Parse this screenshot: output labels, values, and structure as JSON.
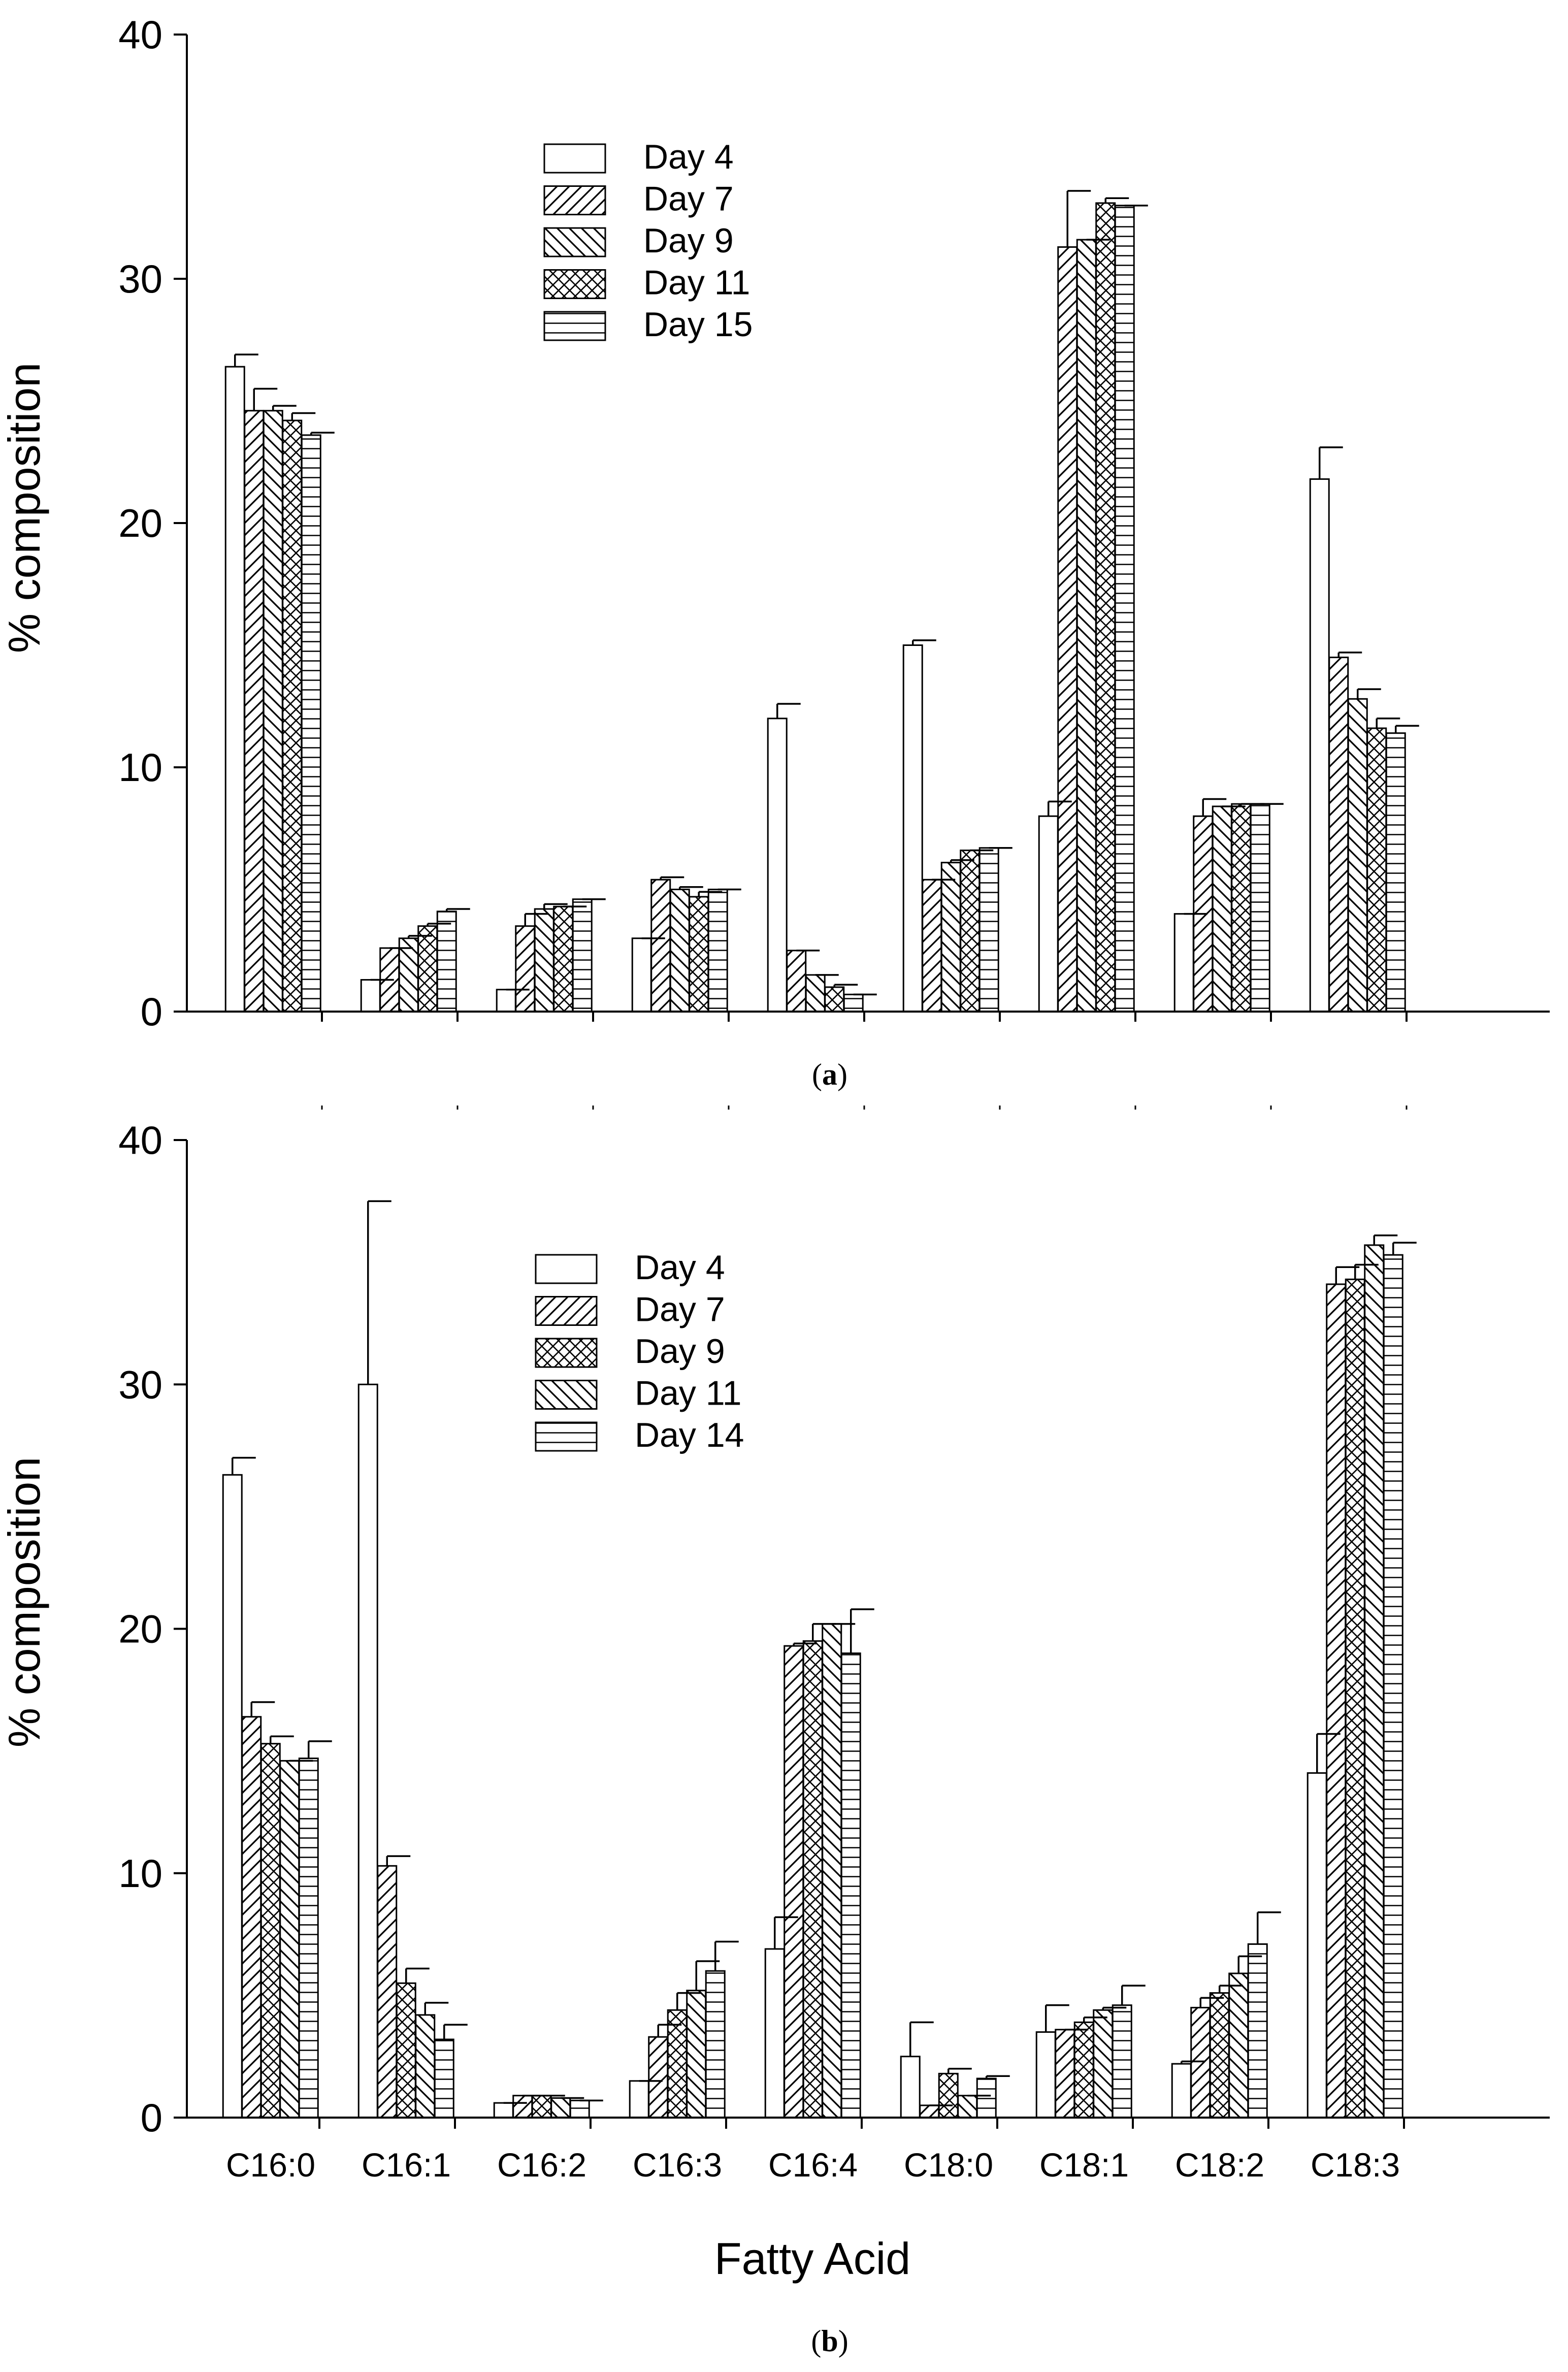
{
  "chart_data": [
    {
      "type": "bar",
      "panel_label": "a",
      "ylabel": "% composition",
      "xlabel": "",
      "ylim": [
        0,
        40
      ],
      "yticks": [
        0,
        10,
        20,
        30,
        40
      ],
      "categories": [
        "C16:0",
        "C16:1",
        "C16:2",
        "C16:3",
        "C16:4",
        "C18:0",
        "C18:1",
        "C18:2",
        "C18:3"
      ],
      "show_category_labels": false,
      "legend_position": "upper-center",
      "series": [
        {
          "name": "Day 4",
          "pattern": "none",
          "values": [
            26.4,
            1.3,
            0.9,
            3.0,
            12.0,
            15.0,
            8.0,
            4.0,
            21.8
          ],
          "errors": [
            0.5,
            0.0,
            0.0,
            0.0,
            0.6,
            0.2,
            0.6,
            0.0,
            1.3
          ]
        },
        {
          "name": "Day 7",
          "pattern": "diag-right",
          "values": [
            24.6,
            2.6,
            3.5,
            5.4,
            2.5,
            5.4,
            31.3,
            8.0,
            14.5
          ],
          "errors": [
            0.9,
            0.0,
            0.5,
            0.1,
            0.0,
            0.0,
            2.3,
            0.7,
            0.2
          ]
        },
        {
          "name": "Day 9",
          "pattern": "diag-left",
          "values": [
            24.6,
            3.0,
            4.2,
            5.0,
            1.5,
            6.1,
            31.6,
            8.4,
            12.8
          ],
          "errors": [
            0.2,
            0.1,
            0.2,
            0.1,
            0.0,
            0.1,
            0.0,
            0.0,
            0.4
          ]
        },
        {
          "name": "Day 11",
          "pattern": "crosshatch",
          "values": [
            24.2,
            3.5,
            4.3,
            4.7,
            1.0,
            6.6,
            33.1,
            8.5,
            11.6
          ],
          "errors": [
            0.3,
            0.1,
            0.0,
            0.2,
            0.1,
            0.0,
            0.2,
            0.0,
            0.4
          ]
        },
        {
          "name": "Day 15",
          "pattern": "horizontal",
          "values": [
            23.6,
            4.1,
            4.6,
            5.0,
            0.7,
            6.7,
            33.0,
            8.5,
            11.4
          ],
          "errors": [
            0.1,
            0.1,
            0.0,
            0.0,
            0.0,
            0.0,
            0.0,
            0.0,
            0.3
          ]
        }
      ]
    },
    {
      "type": "bar",
      "panel_label": "b",
      "ylabel": "% composition",
      "xlabel": "Fatty Acid",
      "ylim": [
        0,
        40
      ],
      "yticks": [
        0,
        10,
        20,
        30,
        40
      ],
      "categories": [
        "C16:0",
        "C16:1",
        "C16:2",
        "C16:3",
        "C16:4",
        "C18:0",
        "C18:1",
        "C18:2",
        "C18:3"
      ],
      "show_category_labels": true,
      "legend_position": "upper-left",
      "series": [
        {
          "name": "Day 4",
          "pattern": "none",
          "values": [
            26.3,
            30.0,
            0.6,
            1.5,
            6.9,
            2.5,
            3.5,
            2.2,
            14.1
          ],
          "errors": [
            0.7,
            7.5,
            0.0,
            0.0,
            1.3,
            1.4,
            1.1,
            0.1,
            1.6
          ]
        },
        {
          "name": "Day 7",
          "pattern": "diag-right",
          "values": [
            16.4,
            10.3,
            0.9,
            3.3,
            19.3,
            0.5,
            3.6,
            4.5,
            34.1
          ],
          "errors": [
            0.6,
            0.4,
            0.0,
            0.5,
            0.1,
            0.0,
            0.0,
            0.4,
            0.7
          ]
        },
        {
          "name": "Day 9",
          "pattern": "crosshatch",
          "values": [
            15.3,
            5.5,
            0.9,
            4.4,
            19.5,
            1.8,
            3.9,
            5.1,
            34.3
          ],
          "errors": [
            0.3,
            0.6,
            0.0,
            0.7,
            0.7,
            0.2,
            0.2,
            0.3,
            0.6
          ]
        },
        {
          "name": "Day 11",
          "pattern": "diag-left",
          "values": [
            14.6,
            4.2,
            0.8,
            5.2,
            20.2,
            0.9,
            4.4,
            5.9,
            35.7
          ],
          "errors": [
            0.0,
            0.5,
            0.0,
            1.2,
            0.0,
            0.0,
            0.1,
            0.7,
            0.4
          ]
        },
        {
          "name": "Day 14",
          "pattern": "horizontal",
          "values": [
            14.7,
            3.2,
            0.7,
            6.0,
            19.0,
            1.6,
            4.6,
            7.1,
            35.3
          ],
          "errors": [
            0.7,
            0.6,
            0.0,
            1.2,
            1.8,
            0.1,
            0.8,
            1.3,
            0.5
          ]
        }
      ]
    }
  ]
}
